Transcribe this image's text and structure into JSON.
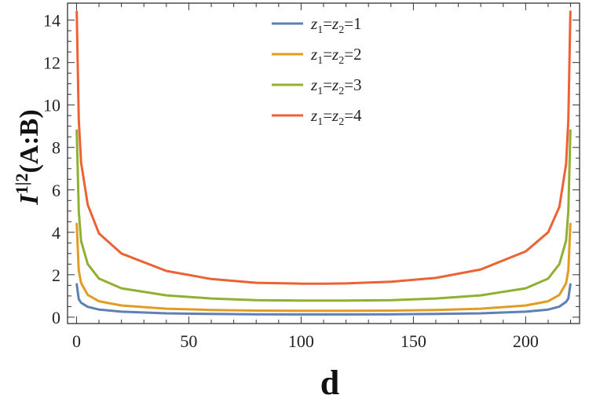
{
  "chart_data": {
    "type": "line",
    "title": "",
    "xlabel": "d",
    "ylabel": "I^{1|2}(A:B)",
    "ylabel_parts": {
      "base": "I",
      "sup": "1|2",
      "arg": "(A:B)"
    },
    "xlim": [
      -4,
      224
    ],
    "ylim": [
      -0.3,
      14.8
    ],
    "xticks": [
      0,
      50,
      100,
      150,
      200
    ],
    "yticks": [
      0,
      2,
      4,
      6,
      8,
      10,
      12,
      14
    ],
    "grid": false,
    "legend_position": "top-center",
    "x": [
      0.1,
      1,
      2,
      5,
      10,
      20,
      40,
      60,
      80,
      100,
      110,
      120,
      140,
      160,
      180,
      200,
      210,
      215,
      218,
      219,
      219.9
    ],
    "series": [
      {
        "name": "z1=z2=1",
        "legend_parts": [
          "z",
          "1",
          "=",
          "z",
          "2",
          "=1"
        ],
        "color": "#5e81b5",
        "values": [
          1.55,
          0.85,
          0.68,
          0.49,
          0.36,
          0.26,
          0.18,
          0.15,
          0.135,
          0.13,
          0.13,
          0.13,
          0.135,
          0.15,
          0.18,
          0.26,
          0.36,
          0.5,
          0.72,
          0.88,
          1.55
        ]
      },
      {
        "name": "z1=z2=2",
        "legend_parts": [
          "z",
          "1",
          "=",
          "z",
          "2",
          "=2"
        ],
        "color": "#e19c24",
        "values": [
          4.4,
          2.2,
          1.62,
          1.05,
          0.75,
          0.55,
          0.4,
          0.34,
          0.31,
          0.3,
          0.3,
          0.3,
          0.31,
          0.34,
          0.4,
          0.55,
          0.75,
          1.05,
          1.6,
          2.2,
          4.4
        ]
      },
      {
        "name": "z1=z2=3",
        "legend_parts": [
          "z",
          "1",
          "=",
          "z",
          "2",
          "=3"
        ],
        "color": "#8fb032",
        "values": [
          8.8,
          5.0,
          3.6,
          2.5,
          1.82,
          1.36,
          1.03,
          0.88,
          0.8,
          0.78,
          0.78,
          0.78,
          0.8,
          0.88,
          1.03,
          1.36,
          1.82,
          2.5,
          3.6,
          5.0,
          8.8
        ]
      },
      {
        "name": "z1=z2=4",
        "legend_parts": [
          "z",
          "1",
          "=",
          "z",
          "2",
          "=4"
        ],
        "color": "#eb6235",
        "values": [
          14.4,
          9.3,
          7.3,
          5.3,
          3.95,
          3.0,
          2.18,
          1.8,
          1.62,
          1.58,
          1.58,
          1.59,
          1.67,
          1.85,
          2.25,
          3.1,
          4.0,
          5.2,
          7.2,
          9.3,
          14.4
        ]
      }
    ]
  }
}
